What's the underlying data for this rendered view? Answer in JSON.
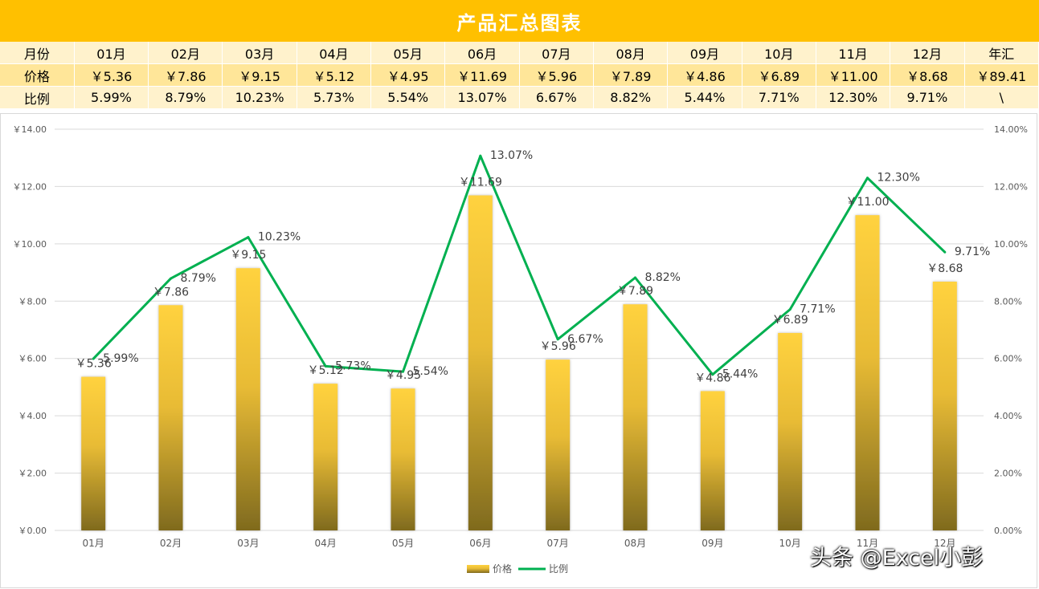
{
  "title": "产品汇总图表",
  "table": {
    "header_label": "月份",
    "price_label": "价格",
    "ratio_label": "比例",
    "months": [
      "01月",
      "02月",
      "03月",
      "04月",
      "05月",
      "06月",
      "07月",
      "08月",
      "09月",
      "10月",
      "11月",
      "12月"
    ],
    "total_label": "年汇",
    "prices": [
      "￥5.36",
      "￥7.86",
      "￥9.15",
      "￥5.12",
      "￥4.95",
      "￥11.69",
      "￥5.96",
      "￥7.89",
      "￥4.86",
      "￥6.89",
      "￥11.00",
      "￥8.68"
    ],
    "price_total": "￥89.41",
    "ratios": [
      "5.99%",
      "8.79%",
      "10.23%",
      "5.73%",
      "5.54%",
      "13.07%",
      "6.67%",
      "8.82%",
      "5.44%",
      "7.71%",
      "12.30%",
      "9.71%"
    ],
    "ratio_total": "\\"
  },
  "chart_data": {
    "type": "bar",
    "categories": [
      "01月",
      "02月",
      "03月",
      "04月",
      "05月",
      "06月",
      "07月",
      "08月",
      "09月",
      "10月",
      "11月",
      "12月"
    ],
    "series": [
      {
        "name": "价格",
        "type": "bar",
        "axis": "left",
        "values": [
          5.36,
          7.86,
          9.15,
          5.12,
          4.95,
          11.69,
          5.96,
          7.89,
          4.86,
          6.89,
          11.0,
          8.68
        ],
        "labels": [
          "￥5.36",
          "￥7.86",
          "￥9.15",
          "￥5.12",
          "￥4.95",
          "￥11.69",
          "￥5.96",
          "￥7.89",
          "￥4.86",
          "￥6.89",
          "￥11.00",
          "￥8.68"
        ],
        "color_top": "#FFD23F",
        "color_bottom": "#7F6A1E"
      },
      {
        "name": "比例",
        "type": "line",
        "axis": "right",
        "values": [
          5.99,
          8.79,
          10.23,
          5.73,
          5.54,
          13.07,
          6.67,
          8.82,
          5.44,
          7.71,
          12.3,
          9.71
        ],
        "labels": [
          "5.99%",
          "8.79%",
          "10.23%",
          "5.73%",
          "5.54%",
          "13.07%",
          "6.67%",
          "8.82%",
          "5.44%",
          "7.71%",
          "12.30%",
          "9.71%"
        ],
        "color": "#00B050"
      }
    ],
    "y_left": {
      "min": 0,
      "max": 14,
      "ticks": [
        "￥0.00",
        "￥2.00",
        "￥4.00",
        "￥6.00",
        "￥8.00",
        "￥10.00",
        "￥12.00",
        "￥14.00"
      ]
    },
    "y_right": {
      "min": 0,
      "max": 14,
      "ticks": [
        "0.00%",
        "2.00%",
        "4.00%",
        "6.00%",
        "8.00%",
        "10.00%",
        "12.00%",
        "14.00%"
      ]
    },
    "grid": true,
    "legend_position": "bottom"
  },
  "watermark": "头条 @Excel小彭"
}
